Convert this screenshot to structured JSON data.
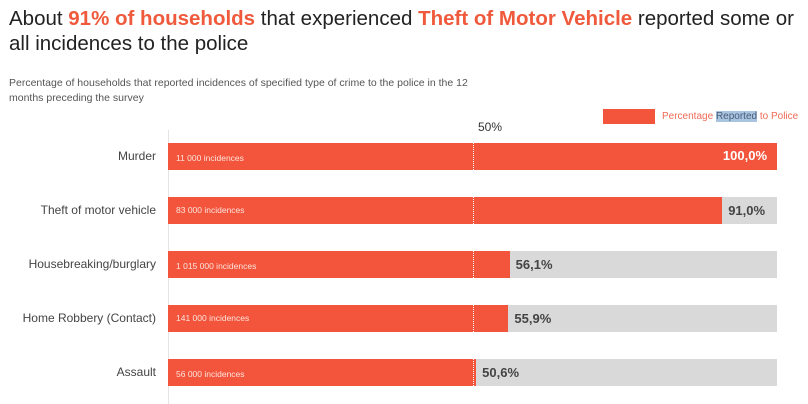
{
  "title": {
    "pre": "About ",
    "hl1": "91% of households",
    "mid": " that experienced ",
    "hl2": "Theft of Motor Vehicle",
    "post": "  reported some or all incidences to the police"
  },
  "chart_data": {
    "type": "bar",
    "orientation": "horizontal",
    "title": "About 91% of households that experienced Theft of Motor Vehicle reported some or all incidences to the police",
    "subtitle": "Percentage of households that reported incidences of specified type of crime to the police in the 12 months preceding the survey",
    "legend": {
      "pre": "Percentage ",
      "sel": "Reported",
      "post": " to Police",
      "placement": "top-right"
    },
    "reference_line": {
      "value": 50,
      "label": "50%"
    },
    "xlim": [
      0,
      100
    ],
    "categories": [
      "Murder",
      "Theft of motor vehicle",
      "Housebreaking/burglary",
      "Home Robbery (Contact)",
      "Assault"
    ],
    "values": [
      100.0,
      91.0,
      56.1,
      55.9,
      50.6
    ],
    "value_labels": [
      "100,0%",
      "91,0%",
      "56,1%",
      "55,9%",
      "50,6%"
    ],
    "incidences": [
      "11 000 incidences",
      "83 000 incidences",
      "1 015 000 incidences",
      "141 000 incidences",
      "56 000 incidences"
    ],
    "colors": {
      "bar": "#f2553c",
      "background": "#d9d9d9",
      "accent": "#f05a3c"
    }
  }
}
